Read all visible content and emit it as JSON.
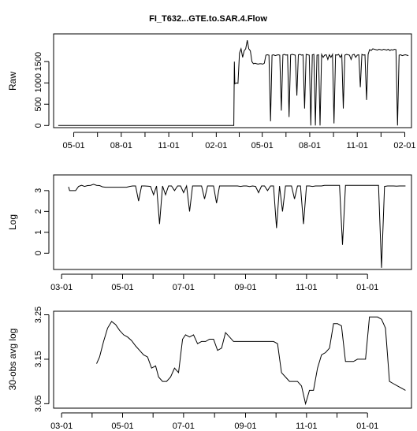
{
  "figure": {
    "title": "FI_T632...GTE.to.SAR.4.Flow"
  },
  "chart_data": [
    {
      "type": "line",
      "ylabel": "Raw",
      "x_axis": "date",
      "xlim": [
        "2014-03-23",
        "2016-02-14"
      ],
      "ylim": [
        -50,
        2150
      ],
      "x_ticks": [
        "2014-05-01",
        "2014-08-01",
        "2014-11-01",
        "2015-02-01",
        "2015-05-01",
        "2015-08-01",
        "2015-11-01",
        "2016-02-01"
      ],
      "x_tick_labels": [
        "05-01",
        "08-01",
        "11-01",
        "02-01",
        "05-01",
        "08-01",
        "11-01",
        "02-01"
      ],
      "y_ticks": [
        0,
        500,
        1000,
        1500
      ],
      "y_tick_labels": [
        "0",
        "500",
        "1000",
        "1500"
      ],
      "series": [
        {
          "x": [
            "2014-04-01",
            "2015-03-07",
            "2015-03-08",
            "2015-03-09",
            "2015-03-12",
            "2015-03-15",
            "2015-03-18",
            "2015-03-21",
            "2015-03-24",
            "2015-03-27",
            "2015-03-30",
            "2015-04-02",
            "2015-04-05",
            "2015-04-08",
            "2015-04-11",
            "2015-04-14",
            "2015-04-17",
            "2015-04-20",
            "2015-04-23",
            "2015-04-26",
            "2015-04-29",
            "2015-05-02",
            "2015-05-05",
            "2015-05-08",
            "2015-05-11",
            "2015-05-14",
            "2015-05-17",
            "2015-05-20",
            "2015-05-23",
            "2015-05-26",
            "2015-05-29",
            "2015-06-01",
            "2015-06-04",
            "2015-06-07",
            "2015-06-10",
            "2015-06-13",
            "2015-06-16",
            "2015-06-19",
            "2015-06-22",
            "2015-06-25",
            "2015-06-28",
            "2015-07-01",
            "2015-07-04",
            "2015-07-07",
            "2015-07-10",
            "2015-07-13",
            "2015-07-16",
            "2015-07-19",
            "2015-07-22",
            "2015-07-25",
            "2015-07-28",
            "2015-07-31",
            "2015-08-03",
            "2015-08-06",
            "2015-08-09",
            "2015-08-12",
            "2015-08-15",
            "2015-08-18",
            "2015-08-21",
            "2015-08-24",
            "2015-08-27",
            "2015-08-30",
            "2015-09-02",
            "2015-09-05",
            "2015-09-08",
            "2015-09-11",
            "2015-09-14",
            "2015-09-17",
            "2015-09-20",
            "2015-09-23",
            "2015-09-26",
            "2015-09-29",
            "2015-10-02",
            "2015-10-05",
            "2015-10-08",
            "2015-10-11",
            "2015-10-14",
            "2015-10-17",
            "2015-10-20",
            "2015-10-23",
            "2015-10-26",
            "2015-10-29",
            "2015-11-01",
            "2015-11-04",
            "2015-11-07",
            "2015-11-10",
            "2015-11-13",
            "2015-11-16",
            "2015-11-19",
            "2015-11-22",
            "2015-11-25",
            "2015-11-28",
            "2015-12-01",
            "2015-12-04",
            "2015-12-07",
            "2015-12-10",
            "2015-12-13",
            "2015-12-16",
            "2015-12-19",
            "2015-12-22",
            "2015-12-25",
            "2015-12-28",
            "2015-12-31",
            "2016-01-03",
            "2016-01-06",
            "2016-01-09",
            "2016-01-12",
            "2016-01-15",
            "2016-01-18",
            "2016-01-21",
            "2016-01-24",
            "2016-01-27",
            "2016-01-30",
            "2016-02-02",
            "2016-02-05",
            "2016-02-08"
          ],
          "y": [
            0,
            0,
            1500,
            980,
            1000,
            990,
            1700,
            1800,
            1600,
            1750,
            1800,
            2000,
            1800,
            1750,
            1500,
            1450,
            1460,
            1450,
            1440,
            1450,
            1450,
            1440,
            1460,
            1650,
            1660,
            1650,
            100,
            1650,
            1660,
            1640,
            1650,
            1660,
            1650,
            350,
            1660,
            1670,
            1650,
            1660,
            200,
            1660,
            1670,
            1660,
            1650,
            700,
            1660,
            1670,
            1650,
            1660,
            400,
            1670,
            1660,
            1650,
            0,
            1660,
            1670,
            0,
            1650,
            1660,
            0,
            1670,
            1600,
            1650,
            1660,
            1550,
            1660,
            1600,
            1670,
            50,
            1660,
            1650,
            1670,
            1600,
            1660,
            400,
            1650,
            1670,
            1660,
            1650,
            1550,
            1660,
            1670,
            1600,
            1650,
            1660,
            900,
            1670,
            1650,
            1660,
            600,
            1670,
            1780,
            1760,
            1800,
            1790,
            1780,
            1770,
            1790,
            1780,
            1770,
            1790,
            1780,
            1770,
            1790,
            1760,
            1780,
            1770,
            1790,
            1780,
            0,
            1650,
            1660,
            1640,
            1650,
            1660,
            1650,
            1640
          ]
        }
      ]
    },
    {
      "type": "line",
      "ylabel": "Log",
      "x_axis": "date",
      "xlim": [
        "2015-02-21",
        "2016-02-14"
      ],
      "ylim": [
        -0.78,
        3.75
      ],
      "x_ticks": [
        "2015-03-01",
        "2015-05-01",
        "2015-07-01",
        "2015-09-01",
        "2015-11-01",
        "2016-01-01"
      ],
      "x_tick_labels": [
        "03-01",
        "05-01",
        "07-01",
        "09-01",
        "11-01",
        "01-01"
      ],
      "y_ticks": [
        0,
        1,
        2,
        3
      ],
      "y_tick_labels": [
        "0",
        "1",
        "2",
        "3"
      ],
      "series": [
        {
          "x": [
            "2015-03-08",
            "2015-03-09",
            "2015-03-12",
            "2015-03-15",
            "2015-03-18",
            "2015-03-21",
            "2015-03-24",
            "2015-03-27",
            "2015-03-30",
            "2015-04-02",
            "2015-04-05",
            "2015-04-08",
            "2015-04-11",
            "2015-04-14",
            "2015-04-17",
            "2015-04-20",
            "2015-04-23",
            "2015-04-26",
            "2015-04-29",
            "2015-05-02",
            "2015-05-05",
            "2015-05-08",
            "2015-05-11",
            "2015-05-14",
            "2015-05-17",
            "2015-05-20",
            "2015-05-23",
            "2015-05-26",
            "2015-05-29",
            "2015-06-01",
            "2015-06-04",
            "2015-06-07",
            "2015-06-10",
            "2015-06-13",
            "2015-06-16",
            "2015-06-19",
            "2015-06-22",
            "2015-06-25",
            "2015-06-28",
            "2015-07-01",
            "2015-07-04",
            "2015-07-07",
            "2015-07-10",
            "2015-07-13",
            "2015-07-16",
            "2015-07-19",
            "2015-07-22",
            "2015-07-25",
            "2015-07-28",
            "2015-07-31",
            "2015-08-03",
            "2015-08-06",
            "2015-08-09",
            "2015-08-12",
            "2015-08-15",
            "2015-08-18",
            "2015-08-21",
            "2015-08-24",
            "2015-08-27",
            "2015-08-30",
            "2015-09-02",
            "2015-09-05",
            "2015-09-08",
            "2015-09-11",
            "2015-09-14",
            "2015-09-17",
            "2015-09-20",
            "2015-09-23",
            "2015-09-26",
            "2015-09-29",
            "2015-10-02",
            "2015-10-05",
            "2015-10-08",
            "2015-10-11",
            "2015-10-14",
            "2015-10-17",
            "2015-10-20",
            "2015-10-23",
            "2015-10-26",
            "2015-10-29",
            "2015-11-01",
            "2015-11-04",
            "2015-11-07",
            "2015-11-10",
            "2015-11-13",
            "2015-11-16",
            "2015-11-19",
            "2015-11-22",
            "2015-11-25",
            "2015-11-28",
            "2015-12-01",
            "2015-12-04",
            "2015-12-07",
            "2015-12-10",
            "2015-12-13",
            "2015-12-16",
            "2015-12-19",
            "2015-12-22",
            "2015-12-25",
            "2015-12-28",
            "2015-12-31",
            "2016-01-03",
            "2016-01-06",
            "2016-01-09",
            "2016-01-12",
            "2016-01-15",
            "2016-01-18",
            "2016-01-21",
            "2016-01-24",
            "2016-01-27",
            "2016-01-30",
            "2016-02-02",
            "2016-02-05",
            "2016-02-08"
          ],
          "y": [
            3.18,
            3.0,
            3.0,
            3.0,
            3.2,
            3.25,
            3.2,
            3.24,
            3.25,
            3.3,
            3.25,
            3.24,
            3.18,
            3.16,
            3.16,
            3.16,
            3.16,
            3.16,
            3.16,
            3.16,
            3.16,
            3.2,
            3.22,
            3.22,
            2.5,
            3.22,
            3.22,
            3.21,
            3.2,
            2.8,
            3.22,
            1.4,
            3.22,
            2.8,
            3.22,
            3.22,
            3.0,
            3.22,
            3.22,
            2.9,
            3.22,
            2.0,
            3.22,
            3.22,
            3.22,
            3.22,
            2.6,
            3.22,
            3.22,
            3.22,
            2.4,
            3.22,
            3.22,
            3.22,
            3.22,
            3.22,
            3.22,
            3.22,
            3.2,
            3.22,
            3.22,
            3.19,
            3.22,
            3.2,
            2.9,
            3.22,
            3.22,
            3.0,
            3.22,
            3.22,
            1.2,
            3.22,
            2.0,
            3.22,
            3.22,
            3.22,
            2.6,
            3.22,
            3.22,
            1.4,
            3.22,
            3.22,
            3.2,
            3.22,
            3.22,
            3.22,
            3.25,
            3.25,
            3.25,
            3.25,
            3.25,
            3.25,
            0.4,
            3.25,
            3.25,
            3.25,
            3.25,
            3.25,
            3.25,
            3.25,
            3.25,
            3.25,
            3.25,
            3.25,
            3.25,
            -0.7,
            3.2,
            3.22,
            3.22,
            3.22,
            3.21,
            3.22,
            3.22,
            3.22
          ]
        }
      ]
    },
    {
      "type": "line",
      "ylabel": "30-obs avg log",
      "x_axis": "date",
      "xlim": [
        "2015-02-21",
        "2016-02-14"
      ],
      "ylim": [
        3.04,
        3.258
      ],
      "x_ticks": [
        "2015-03-01",
        "2015-05-01",
        "2015-07-01",
        "2015-09-01",
        "2015-11-01",
        "2016-01-01"
      ],
      "x_tick_labels": [
        "03-01",
        "05-01",
        "07-01",
        "09-01",
        "11-01",
        "01-01"
      ],
      "y_ticks": [
        3.05,
        3.15,
        3.25
      ],
      "y_tick_labels": [
        "3.05",
        "3.15",
        "3.25"
      ],
      "series": [
        {
          "x": [
            "2015-04-05",
            "2015-04-08",
            "2015-04-12",
            "2015-04-16",
            "2015-04-20",
            "2015-04-24",
            "2015-04-28",
            "2015-05-02",
            "2015-05-06",
            "2015-05-10",
            "2015-05-14",
            "2015-05-18",
            "2015-05-22",
            "2015-05-26",
            "2015-05-30",
            "2015-06-03",
            "2015-06-06",
            "2015-06-10",
            "2015-06-14",
            "2015-06-18",
            "2015-06-22",
            "2015-06-26",
            "2015-06-30",
            "2015-07-03",
            "2015-07-07",
            "2015-07-11",
            "2015-07-15",
            "2015-07-19",
            "2015-07-23",
            "2015-07-27",
            "2015-07-31",
            "2015-08-04",
            "2015-08-08",
            "2015-08-12",
            "2015-08-16",
            "2015-08-20",
            "2015-08-24",
            "2015-08-28",
            "2015-09-01",
            "2015-09-05",
            "2015-09-09",
            "2015-09-13",
            "2015-09-17",
            "2015-09-21",
            "2015-09-25",
            "2015-09-29",
            "2015-10-03",
            "2015-10-07",
            "2015-10-11",
            "2015-10-15",
            "2015-10-19",
            "2015-10-23",
            "2015-10-27",
            "2015-10-31",
            "2015-11-04",
            "2015-11-08",
            "2015-11-12",
            "2015-11-16",
            "2015-11-20",
            "2015-11-24",
            "2015-11-28",
            "2015-12-02",
            "2015-12-06",
            "2015-12-10",
            "2015-12-14",
            "2015-12-18",
            "2015-12-22",
            "2015-12-26",
            "2015-12-30",
            "2016-01-03",
            "2016-01-07",
            "2016-01-11",
            "2016-01-15",
            "2016-01-19",
            "2016-01-23",
            "2016-01-27",
            "2016-01-31",
            "2016-02-04",
            "2016-02-08"
          ],
          "y": [
            3.14,
            3.155,
            3.19,
            3.22,
            3.235,
            3.228,
            3.215,
            3.205,
            3.2,
            3.192,
            3.18,
            3.17,
            3.16,
            3.155,
            3.13,
            3.135,
            3.11,
            3.1,
            3.1,
            3.11,
            3.13,
            3.12,
            3.195,
            3.205,
            3.2,
            3.205,
            3.185,
            3.19,
            3.19,
            3.195,
            3.195,
            3.17,
            3.175,
            3.21,
            3.2,
            3.19,
            3.19,
            3.19,
            3.19,
            3.19,
            3.19,
            3.19,
            3.19,
            3.19,
            3.19,
            3.19,
            3.185,
            3.12,
            3.11,
            3.1,
            3.1,
            3.1,
            3.09,
            3.05,
            3.08,
            3.08,
            3.13,
            3.16,
            3.165,
            3.175,
            3.23,
            3.23,
            3.225,
            3.145,
            3.145,
            3.145,
            3.15,
            3.15,
            3.15,
            3.245,
            3.245,
            3.245,
            3.24,
            3.22,
            3.1,
            3.095,
            3.09,
            3.085,
            3.08
          ]
        }
      ]
    }
  ]
}
